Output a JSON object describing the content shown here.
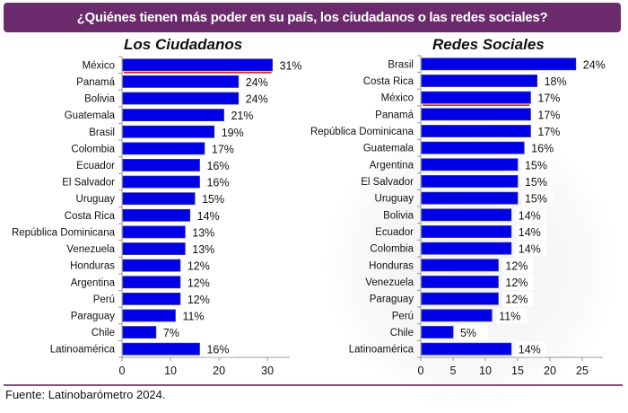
{
  "header": {
    "title": "¿Quiénes tienen más poder en su país, los ciudadanos o las redes sociales?"
  },
  "source": "Fuente: Latinobarómetro 2024.",
  "colors": {
    "header_bg": "#6b2a6b",
    "bar": "#0000e6",
    "highlight_underline": "#e02020",
    "footer_line": "#8a4a8a"
  },
  "chart_data": [
    {
      "type": "bar",
      "orientation": "horizontal",
      "title": "Los Ciudadanos",
      "categories": [
        "México",
        "Panamá",
        "Bolivia",
        "Guatemala",
        "Brasil",
        "Colombia",
        "Ecuador",
        "El Salvador",
        "Uruguay",
        "Costa Rica",
        "República Dominicana",
        "Venezuela",
        "Honduras",
        "Argentina",
        "Perú",
        "Paraguay",
        "Chile",
        "Latinoamérica"
      ],
      "values": [
        31,
        24,
        24,
        21,
        19,
        17,
        16,
        16,
        15,
        14,
        13,
        13,
        12,
        12,
        12,
        11,
        7,
        16
      ],
      "value_labels": [
        "31%",
        "24%",
        "24%",
        "21%",
        "19%",
        "17%",
        "16%",
        "16%",
        "15%",
        "14%",
        "13%",
        "13%",
        "12%",
        "12%",
        "12%",
        "11%",
        "7%",
        "16%"
      ],
      "highlight": "México",
      "xlim": [
        0,
        34.6
      ],
      "xticks": [
        0,
        10,
        20,
        30
      ],
      "xlabel": "",
      "ylabel": "",
      "grid": false,
      "legend": "none"
    },
    {
      "type": "bar",
      "orientation": "horizontal",
      "title": "Redes Sociales",
      "categories": [
        "Brasil",
        "Costa Rica",
        "México",
        "Panamá",
        "República Dominicana",
        "Guatemala",
        "Argentina",
        "El Salvador",
        "Uruguay",
        "Bolivia",
        "Ecuador",
        "Colombia",
        "Honduras",
        "Venezuela",
        "Paraguay",
        "Perú",
        "Chile",
        "Latinoamérica"
      ],
      "values": [
        24,
        18,
        17,
        17,
        17,
        16,
        15,
        15,
        15,
        14,
        14,
        14,
        12,
        12,
        12,
        11,
        5,
        14
      ],
      "value_labels": [
        "24%",
        "18%",
        "17%",
        "17%",
        "17%",
        "16%",
        "15%",
        "15%",
        "15%",
        "14%",
        "14%",
        "14%",
        "12%",
        "12%",
        "12%",
        "11%",
        "5%",
        "14%"
      ],
      "highlight": "México",
      "xlim": [
        0,
        28.2
      ],
      "xticks": [
        0,
        5,
        10,
        15,
        20,
        25
      ],
      "xlabel": "",
      "ylabel": "",
      "grid": false,
      "legend": "none"
    }
  ]
}
